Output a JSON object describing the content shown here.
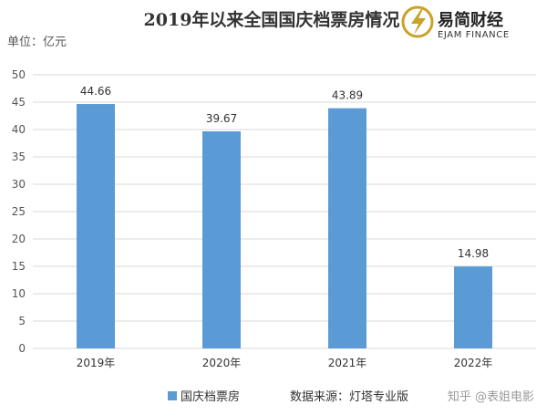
{
  "chart_data": {
    "type": "bar",
    "title": "2019年以来全国国庆档票房情况",
    "unit_label": "单位：亿元",
    "categories": [
      "2019年",
      "2020年",
      "2021年",
      "2022年"
    ],
    "series": [
      {
        "name": "国庆档票房",
        "values": [
          44.66,
          39.67,
          43.89,
          14.98
        ],
        "color": "#5b9bd5"
      }
    ],
    "data_labels": [
      "44.66",
      "39.67",
      "43.89",
      "14.98"
    ],
    "ylim": [
      0,
      50
    ],
    "yticks": [
      0,
      5,
      10,
      15,
      20,
      25,
      30,
      35,
      40,
      45,
      50
    ],
    "grid": true,
    "legend_position": "bottom-left"
  },
  "source_note": "数据来源：灯塔专业版",
  "watermark": "知乎 @表姐电影",
  "brand": {
    "name_cn": "易简财经",
    "name_en": "EJAM FINANCE",
    "logo_color": "#c9a227"
  },
  "colors": {
    "bar": "#5b9bd5",
    "grid": "#d9d9d9"
  }
}
